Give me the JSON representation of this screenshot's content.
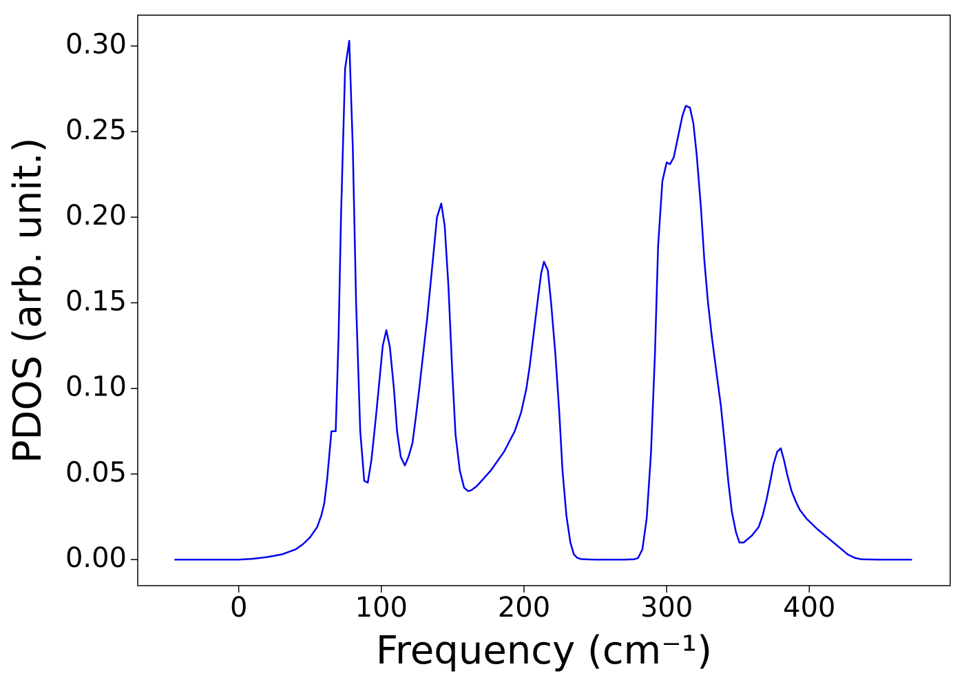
{
  "chart_data": {
    "type": "line",
    "xlabel": "Frequency (cm⁻¹)",
    "ylabel": "PDOS (arb. unit.)",
    "x": [
      -45,
      0,
      10,
      20,
      30,
      40,
      45,
      50,
      55,
      58,
      60,
      62,
      65,
      68,
      70,
      71.7,
      74.6,
      77.5,
      80,
      82.3,
      85.2,
      88,
      90.5,
      93,
      95.8,
      98.7,
      101,
      103.5,
      106,
      108.8,
      111,
      113.6,
      116.5,
      119,
      121.8,
      124,
      126.6,
      132,
      136.7,
      139,
      142,
      144.4,
      147,
      149.7,
      152,
      155,
      158,
      160.8,
      163,
      167,
      176.7,
      186,
      193.5,
      198,
      201.7,
      204,
      206.5,
      209.4,
      212,
      214,
      216.7,
      219,
      222,
      224.8,
      227,
      229.7,
      232.5,
      235,
      237.4,
      240,
      250,
      270,
      277.3,
      280,
      283,
      286,
      289,
      291.8,
      294,
      297,
      300,
      302.4,
      305,
      308,
      311,
      313.4,
      316.3,
      318.7,
      321,
      324,
      326.4,
      329,
      331.7,
      335.6,
      338,
      340.9,
      343.3,
      345.7,
      348.6,
      351,
      354,
      359.7,
      364.5,
      367.4,
      370,
      372.7,
      375,
      377.5,
      380,
      382.3,
      384.7,
      387.6,
      390.5,
      393.4,
      398,
      405.4,
      412.6,
      421.3,
      427,
      432,
      436.7,
      450,
      472
    ],
    "series": [
      {
        "name": "PDOS",
        "color": "#0000ee",
        "values": [
          0,
          0,
          0.0005,
          0.0015,
          0.003,
          0.006,
          0.009,
          0.013,
          0.019,
          0.026,
          0.033,
          0.047,
          0.075,
          0.075,
          0.13,
          0.2,
          0.287,
          0.303,
          0.24,
          0.15,
          0.075,
          0.046,
          0.045,
          0.058,
          0.08,
          0.105,
          0.125,
          0.134,
          0.124,
          0.1,
          0.075,
          0.06,
          0.055,
          0.06,
          0.068,
          0.082,
          0.1,
          0.14,
          0.18,
          0.2,
          0.208,
          0.195,
          0.16,
          0.11,
          0.073,
          0.052,
          0.042,
          0.04,
          0.0405,
          0.043,
          0.052,
          0.063,
          0.075,
          0.086,
          0.1,
          0.113,
          0.13,
          0.15,
          0.167,
          0.174,
          0.169,
          0.15,
          0.12,
          0.085,
          0.052,
          0.026,
          0.01,
          0.003,
          0.001,
          0.0003,
          0,
          0,
          0.0002,
          0.001,
          0.006,
          0.024,
          0.062,
          0.12,
          0.183,
          0.221,
          0.232,
          0.231,
          0.235,
          0.247,
          0.259,
          0.265,
          0.264,
          0.255,
          0.237,
          0.206,
          0.175,
          0.15,
          0.13,
          0.105,
          0.09,
          0.066,
          0.045,
          0.028,
          0.016,
          0.01,
          0.01,
          0.014,
          0.019,
          0.026,
          0.035,
          0.046,
          0.056,
          0.063,
          0.065,
          0.058,
          0.049,
          0.04,
          0.034,
          0.029,
          0.024,
          0.018,
          0.013,
          0.007,
          0.003,
          0.001,
          0.0002,
          0,
          0
        ]
      }
    ],
    "xlim": [
      -70.8,
      498.8
    ],
    "ylim": [
      -0.0152,
      0.318
    ],
    "xticks": [
      0,
      100,
      200,
      300,
      400
    ],
    "yticks": [
      {
        "value": 0,
        "label": "0.00"
      },
      0.05,
      {
        "value": 0.1,
        "label": "0.10"
      },
      0.15,
      {
        "value": 0.2,
        "label": "0.20"
      },
      0.25,
      {
        "value": 0.3,
        "label": "0.30"
      }
    ]
  }
}
